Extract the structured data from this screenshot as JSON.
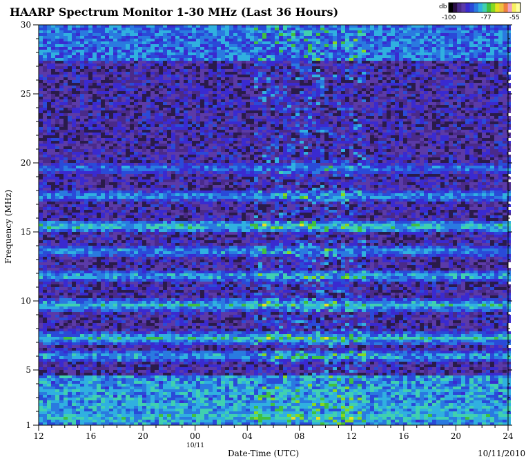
{
  "chart_data": {
    "type": "heatmap",
    "title": "HAARP Spectrum Monitor 1-30 MHz (Last 36 Hours)",
    "xlabel": "Date-Time (UTC)",
    "ylabel": "Frequency (MHz)",
    "date_label": "10/11/2010",
    "date_marker": "10/11",
    "x_tick_labels": [
      "12",
      "16",
      "20",
      "00",
      "04",
      "08",
      "12",
      "16",
      "20",
      "24"
    ],
    "y_tick_labels": [
      "1",
      "5",
      "10",
      "15",
      "20",
      "25",
      "30"
    ],
    "ylim": [
      1,
      30
    ],
    "legend": {
      "title": "db",
      "labels": [
        "-100",
        "-77",
        "-55"
      ],
      "range": [
        -100,
        -55
      ],
      "colors": [
        "#000000",
        "#2a0f45",
        "#4a2a8a",
        "#5b3aa8",
        "#3a2ad0",
        "#2a4ad8",
        "#2a7ae0",
        "#30b0e0",
        "#40d0b0",
        "#40c040",
        "#88d820",
        "#e8e020",
        "#f0c040",
        "#f08040",
        "#f0a0c0",
        "#f8f060",
        "#ffffa0"
      ]
    },
    "bands": [
      {
        "freq": 1.6,
        "db": -78
      },
      {
        "freq": 2.4,
        "db": -80
      },
      {
        "freq": 3.5,
        "db": -82
      },
      {
        "freq": 6.0,
        "db": -80
      },
      {
        "freq": 7.3,
        "db": -79
      },
      {
        "freq": 9.7,
        "db": -79
      },
      {
        "freq": 11.8,
        "db": -80
      },
      {
        "freq": 13.6,
        "db": -81
      },
      {
        "freq": 15.4,
        "db": -78
      },
      {
        "freq": 17.6,
        "db": -81
      },
      {
        "freq": 19.6,
        "db": -83
      },
      {
        "freq": 28.6,
        "db": -85
      },
      {
        "freq": 29.4,
        "db": -84
      }
    ]
  }
}
